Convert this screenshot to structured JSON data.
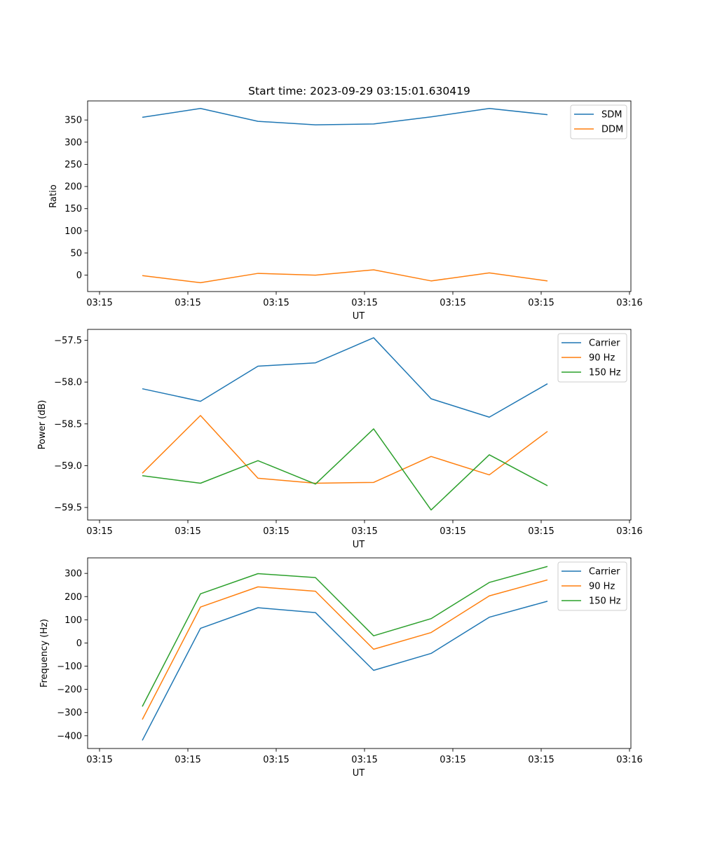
{
  "figure_title": "Start time: 2023-09-29 03:15:01.630419",
  "colors": {
    "blue": "#1f77b4",
    "orange": "#ff7f0e",
    "green": "#2ca02c"
  },
  "chart_data": [
    {
      "type": "line",
      "title": "Start time: 2023-09-29 03:15:01.630419",
      "xlabel": "UT",
      "ylabel": "Ratio",
      "x_tick_labels": [
        "03:15",
        "03:15",
        "03:15",
        "03:15",
        "03:15",
        "03:15",
        "03:16"
      ],
      "y_ticks": [
        0,
        50,
        100,
        150,
        200,
        250,
        300,
        350
      ],
      "ylim": [
        -37,
        393
      ],
      "legend_position": "top-right",
      "series": [
        {
          "name": "SDM",
          "color": "#1f77b4",
          "values": [
            356,
            376,
            347,
            339,
            341,
            357,
            376,
            362
          ]
        },
        {
          "name": "DDM",
          "color": "#ff7f0e",
          "values": [
            -1,
            -17,
            4,
            0,
            12,
            -13,
            5,
            -13
          ]
        }
      ]
    },
    {
      "type": "line",
      "title": "",
      "xlabel": "UT",
      "ylabel": "Power (dB)",
      "x_tick_labels": [
        "03:15",
        "03:15",
        "03:15",
        "03:15",
        "03:15",
        "03:15",
        "03:16"
      ],
      "y_ticks": [
        -57.5,
        -58.0,
        -58.5,
        -59.0,
        -59.5
      ],
      "y_tick_labels": [
        "−57.5",
        "−58.0",
        "−58.5",
        "−59.0",
        "−59.5"
      ],
      "ylim": [
        -59.65,
        -57.37
      ],
      "legend_position": "top-right",
      "series": [
        {
          "name": "Carrier",
          "color": "#1f77b4",
          "values": [
            -58.08,
            -58.23,
            -57.81,
            -57.77,
            -57.47,
            -58.2,
            -58.42,
            -58.02
          ]
        },
        {
          "name": "90 Hz",
          "color": "#ff7f0e",
          "values": [
            -59.09,
            -58.4,
            -59.15,
            -59.21,
            -59.2,
            -58.89,
            -59.11,
            -58.59
          ]
        },
        {
          "name": "150 Hz",
          "color": "#2ca02c",
          "values": [
            -59.12,
            -59.21,
            -58.94,
            -59.22,
            -58.56,
            -59.53,
            -58.87,
            -59.24
          ]
        }
      ]
    },
    {
      "type": "line",
      "title": "",
      "xlabel": "UT",
      "ylabel": "Frequency (Hz)",
      "x_tick_labels": [
        "03:15",
        "03:15",
        "03:15",
        "03:15",
        "03:15",
        "03:15",
        "03:16"
      ],
      "y_ticks": [
        300,
        200,
        100,
        0,
        -100,
        -200,
        -300,
        -400
      ],
      "y_tick_labels": [
        "300",
        "200",
        "100",
        "0",
        "−100",
        "−200",
        "−300",
        "−400"
      ],
      "ylim": [
        -455,
        367
      ],
      "legend_position": "top-right",
      "series": [
        {
          "name": "Carrier",
          "color": "#1f77b4",
          "values": [
            -420,
            63,
            152,
            131,
            -118,
            -45,
            111,
            180
          ]
        },
        {
          "name": "90 Hz",
          "color": "#ff7f0e",
          "values": [
            -330,
            155,
            242,
            223,
            -27,
            45,
            203,
            272
          ]
        },
        {
          "name": "150 Hz",
          "color": "#2ca02c",
          "values": [
            -274,
            212,
            299,
            282,
            31,
            105,
            261,
            330
          ]
        }
      ]
    }
  ]
}
